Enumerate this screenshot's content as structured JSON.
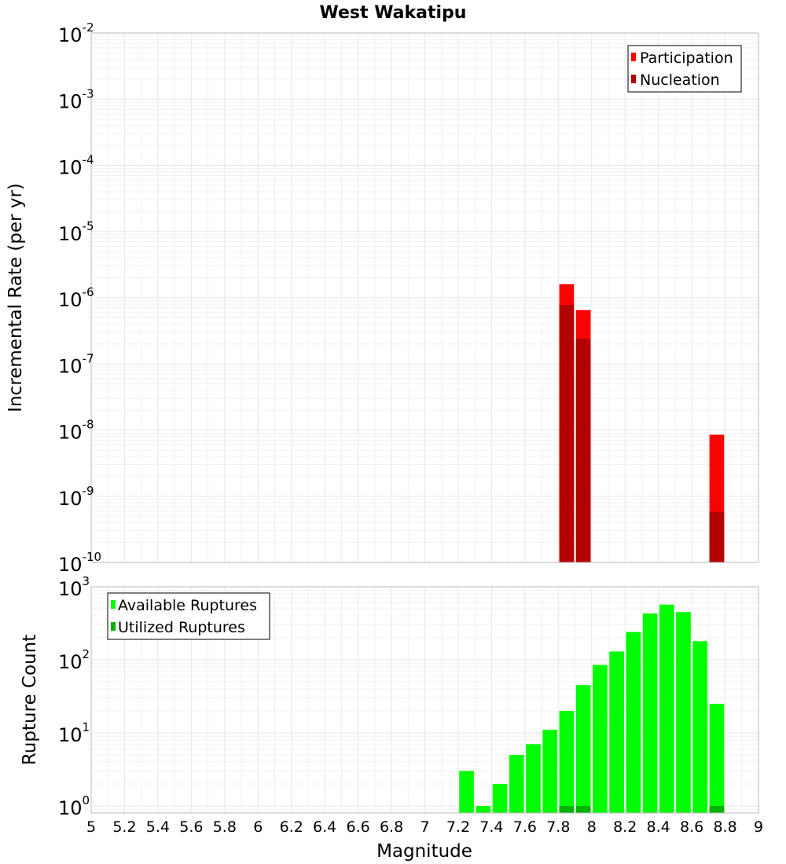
{
  "chart_data": [
    {
      "type": "bar",
      "title": "West Wakatipu",
      "xlabel": "",
      "ylabel": "Incremental Rate (per yr)",
      "y_scale": "log",
      "ylim": [
        1e-10,
        0.01
      ],
      "xlim": [
        5,
        9
      ],
      "grid": true,
      "legend_position": "top-right",
      "series": [
        {
          "name": "Participation",
          "color": "#ff0000",
          "points": [
            {
              "x": 7.85,
              "y": 1.6e-06
            },
            {
              "x": 7.95,
              "y": 6.5e-07
            },
            {
              "x": 8.75,
              "y": 8.5e-09
            }
          ]
        },
        {
          "name": "Nucleation",
          "color": "#b30000",
          "points": [
            {
              "x": 7.85,
              "y": 7.8e-07
            },
            {
              "x": 7.95,
              "y": 2.4e-07
            },
            {
              "x": 8.75,
              "y": 5.8e-10
            }
          ]
        }
      ]
    },
    {
      "type": "bar",
      "title": "",
      "xlabel": "Magnitude",
      "ylabel": "Rupture Count",
      "y_scale": "log",
      "ylim": [
        0.8,
        1000
      ],
      "xlim": [
        5,
        9
      ],
      "grid": true,
      "legend_position": "top-left",
      "x_tick_labels": [
        "5",
        "5.2",
        "5.4",
        "5.6",
        "5.8",
        "6",
        "6.2",
        "6.4",
        "6.6",
        "6.8",
        "7",
        "7.2",
        "7.4",
        "7.6",
        "7.8",
        "8",
        "8.2",
        "8.4",
        "8.6",
        "8.8",
        "9"
      ],
      "series": [
        {
          "name": "Available Ruptures",
          "color": "#00ff00",
          "points": [
            {
              "x": 7.25,
              "y": 3
            },
            {
              "x": 7.35,
              "y": 1
            },
            {
              "x": 7.45,
              "y": 2
            },
            {
              "x": 7.55,
              "y": 5
            },
            {
              "x": 7.65,
              "y": 7
            },
            {
              "x": 7.75,
              "y": 11
            },
            {
              "x": 7.85,
              "y": 20
            },
            {
              "x": 7.95,
              "y": 45
            },
            {
              "x": 8.05,
              "y": 85
            },
            {
              "x": 8.15,
              "y": 130
            },
            {
              "x": 8.25,
              "y": 240
            },
            {
              "x": 8.35,
              "y": 430
            },
            {
              "x": 8.45,
              "y": 570
            },
            {
              "x": 8.55,
              "y": 450
            },
            {
              "x": 8.65,
              "y": 180
            },
            {
              "x": 8.75,
              "y": 25
            }
          ]
        },
        {
          "name": "Utilized Ruptures",
          "color": "#00b300",
          "points": [
            {
              "x": 7.85,
              "y": 1
            },
            {
              "x": 7.95,
              "y": 1
            },
            {
              "x": 8.75,
              "y": 1
            }
          ]
        }
      ]
    }
  ],
  "top_y_ticks": [
    {
      "exp": "-2",
      "label": "10"
    },
    {
      "exp": "-3",
      "label": "10"
    },
    {
      "exp": "-4",
      "label": "10"
    },
    {
      "exp": "-5",
      "label": "10"
    },
    {
      "exp": "-6",
      "label": "10"
    },
    {
      "exp": "-7",
      "label": "10"
    },
    {
      "exp": "-8",
      "label": "10"
    },
    {
      "exp": "-9",
      "label": "10"
    },
    {
      "exp": "-10",
      "label": "10"
    }
  ],
  "bottom_y_ticks": [
    {
      "exp": "3",
      "label": "10"
    },
    {
      "exp": "2",
      "label": "10"
    },
    {
      "exp": "1",
      "label": "10"
    },
    {
      "exp": "0",
      "label": "10"
    }
  ]
}
